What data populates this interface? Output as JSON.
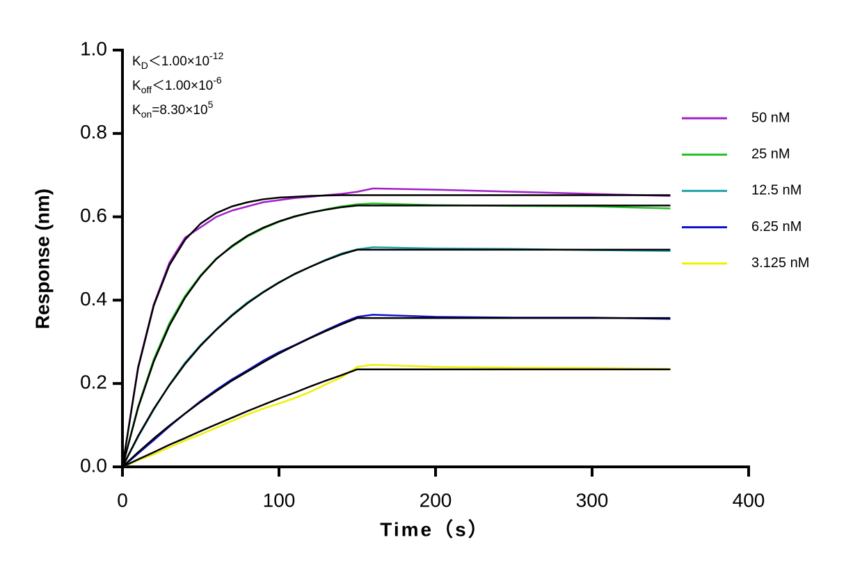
{
  "chart_data": {
    "type": "line",
    "xlabel": "Time（s）",
    "ylabel": "Response (nm)",
    "xlim": [
      0,
      400
    ],
    "xticks": [
      0,
      100,
      200,
      300,
      400
    ],
    "ylim": [
      0,
      1.0
    ],
    "yticks": [
      {
        "value": 0,
        "label": "0.0"
      },
      0.2,
      0.4,
      0.6,
      0.8,
      {
        "value": 1.0,
        "label": "1.0"
      }
    ],
    "annotations": [
      {
        "base": "K",
        "sub": "D",
        "text": "＜1.00×10",
        "sup": "-12"
      },
      {
        "base": "K",
        "sub": "off",
        "text": "＜1.00×10",
        "sup": "-6"
      },
      {
        "base": "K",
        "sub": "on",
        "text": "=8.30×10",
        "sup": "5"
      }
    ],
    "series": [
      {
        "name": "50 nM",
        "color": "#a020c8",
        "x": [
          0,
          10,
          20,
          30,
          40,
          50,
          60,
          70,
          80,
          90,
          100,
          110,
          120,
          130,
          140,
          150,
          160,
          200,
          250,
          300,
          350
        ],
        "values": [
          0,
          0.24,
          0.39,
          0.49,
          0.55,
          0.575,
          0.6,
          0.615,
          0.625,
          0.635,
          0.64,
          0.645,
          0.648,
          0.652,
          0.655,
          0.66,
          0.668,
          0.665,
          0.66,
          0.655,
          0.65
        ]
      },
      {
        "name": "25 nM",
        "color": "#22c022",
        "x": [
          0,
          10,
          20,
          30,
          40,
          50,
          60,
          70,
          80,
          90,
          100,
          110,
          120,
          130,
          140,
          150,
          160,
          200,
          250,
          300,
          350
        ],
        "values": [
          0,
          0.145,
          0.258,
          0.345,
          0.41,
          0.46,
          0.5,
          0.528,
          0.553,
          0.572,
          0.588,
          0.6,
          0.61,
          0.618,
          0.625,
          0.63,
          0.632,
          0.628,
          0.626,
          0.625,
          0.62
        ]
      },
      {
        "name": "12.5 nM",
        "color": "#20a0a8",
        "x": [
          0,
          10,
          20,
          30,
          40,
          50,
          60,
          70,
          80,
          90,
          100,
          110,
          120,
          130,
          140,
          150,
          160,
          200,
          250,
          300,
          350
        ],
        "values": [
          0,
          0.072,
          0.137,
          0.197,
          0.25,
          0.293,
          0.33,
          0.365,
          0.395,
          0.42,
          0.443,
          0.462,
          0.48,
          0.497,
          0.512,
          0.522,
          0.527,
          0.524,
          0.523,
          0.52,
          0.518
        ]
      },
      {
        "name": "6.25 nM",
        "color": "#1010c8",
        "x": [
          0,
          10,
          20,
          30,
          40,
          50,
          60,
          70,
          80,
          90,
          100,
          110,
          120,
          130,
          140,
          150,
          160,
          200,
          250,
          300,
          350
        ],
        "values": [
          0,
          0.032,
          0.064,
          0.097,
          0.128,
          0.158,
          0.185,
          0.21,
          0.232,
          0.255,
          0.275,
          0.292,
          0.31,
          0.328,
          0.345,
          0.36,
          0.365,
          0.36,
          0.358,
          0.358,
          0.355
        ]
      },
      {
        "name": "3.125 nM",
        "color": "#f0f000",
        "x": [
          0,
          10,
          20,
          30,
          40,
          50,
          60,
          70,
          80,
          90,
          100,
          110,
          120,
          130,
          140,
          150,
          160,
          200,
          250,
          300,
          350
        ],
        "values": [
          0,
          0.016,
          0.03,
          0.047,
          0.063,
          0.078,
          0.094,
          0.11,
          0.126,
          0.14,
          0.152,
          0.165,
          0.18,
          0.198,
          0.215,
          0.24,
          0.245,
          0.24,
          0.238,
          0.237,
          0.235
        ]
      }
    ],
    "fits": [
      {
        "color": "#000000",
        "x": [
          0,
          10,
          20,
          30,
          40,
          50,
          60,
          70,
          80,
          90,
          100,
          110,
          120,
          130,
          140,
          150,
          350
        ],
        "values": [
          0,
          0.237,
          0.387,
          0.484,
          0.545,
          0.584,
          0.609,
          0.625,
          0.635,
          0.642,
          0.646,
          0.648,
          0.65,
          0.651,
          0.652,
          0.652,
          0.652
        ]
      },
      {
        "color": "#000000",
        "x": [
          0,
          10,
          20,
          30,
          40,
          50,
          60,
          70,
          80,
          90,
          100,
          110,
          120,
          130,
          140,
          150,
          350
        ],
        "values": [
          0,
          0.142,
          0.253,
          0.339,
          0.406,
          0.458,
          0.499,
          0.53,
          0.555,
          0.574,
          0.589,
          0.601,
          0.61,
          0.617,
          0.623,
          0.627,
          0.627
        ]
      },
      {
        "color": "#000000",
        "x": [
          0,
          10,
          20,
          30,
          40,
          50,
          60,
          70,
          80,
          90,
          100,
          110,
          120,
          130,
          140,
          150,
          350
        ],
        "values": [
          0,
          0.074,
          0.139,
          0.196,
          0.247,
          0.291,
          0.329,
          0.363,
          0.393,
          0.419,
          0.442,
          0.463,
          0.48,
          0.496,
          0.51,
          0.521,
          0.521
        ]
      },
      {
        "color": "#000000",
        "x": [
          0,
          10,
          20,
          30,
          40,
          50,
          60,
          70,
          80,
          90,
          100,
          110,
          120,
          130,
          140,
          150,
          350
        ],
        "values": [
          0,
          0.035,
          0.068,
          0.099,
          0.128,
          0.156,
          0.182,
          0.207,
          0.229,
          0.251,
          0.272,
          0.291,
          0.309,
          0.326,
          0.342,
          0.357,
          0.357
        ]
      },
      {
        "color": "#000000",
        "x": [
          0,
          10,
          20,
          30,
          40,
          50,
          60,
          70,
          80,
          90,
          100,
          110,
          120,
          130,
          140,
          150,
          350
        ],
        "values": [
          0,
          0.018,
          0.035,
          0.053,
          0.069,
          0.086,
          0.102,
          0.118,
          0.134,
          0.149,
          0.164,
          0.178,
          0.193,
          0.207,
          0.22,
          0.234,
          0.234
        ]
      }
    ]
  }
}
